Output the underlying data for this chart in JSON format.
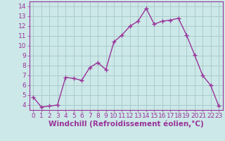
{
  "x": [
    0,
    1,
    2,
    3,
    4,
    5,
    6,
    7,
    8,
    9,
    10,
    11,
    12,
    13,
    14,
    15,
    16,
    17,
    18,
    19,
    20,
    21,
    22,
    23
  ],
  "y": [
    4.8,
    3.8,
    3.9,
    4.0,
    6.8,
    6.7,
    6.5,
    7.8,
    8.3,
    7.6,
    10.4,
    11.1,
    12.0,
    12.5,
    13.8,
    12.2,
    12.5,
    12.6,
    12.8,
    11.1,
    9.1,
    7.0,
    6.0,
    3.9
  ],
  "line_color": "#993399",
  "marker": "D",
  "marker_size": 2.5,
  "bg_color": "#cce8e8",
  "grid_color": "#aacccc",
  "xlabel": "Windchill (Refroidissement éolien,°C)",
  "xlim": [
    -0.5,
    23.5
  ],
  "ylim": [
    3.5,
    14.5
  ],
  "yticks": [
    4,
    5,
    6,
    7,
    8,
    9,
    10,
    11,
    12,
    13,
    14
  ],
  "xticks": [
    0,
    1,
    2,
    3,
    4,
    5,
    6,
    7,
    8,
    9,
    10,
    11,
    12,
    13,
    14,
    15,
    16,
    17,
    18,
    19,
    20,
    21,
    22,
    23
  ],
  "tick_label_fontsize": 6.5,
  "xlabel_fontsize": 7.5,
  "line_width": 1.0
}
